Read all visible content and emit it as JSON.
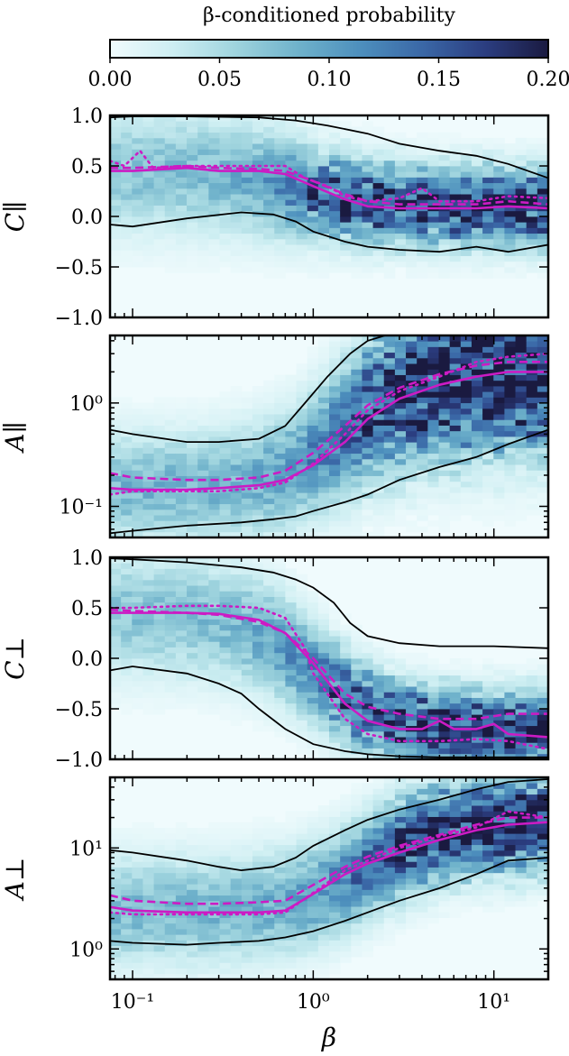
{
  "colorbar": {
    "label": "β-conditioned probability",
    "ticks": [
      "0.00",
      "0.05",
      "0.10",
      "0.15",
      "0.20"
    ],
    "range": [
      0,
      0.2
    ],
    "colormap": [
      "#f0fbfd",
      "#cdeef2",
      "#9fd4de",
      "#6fb2cb",
      "#4d8fbd",
      "#3a67a6",
      "#2b3d80",
      "#1a1a40"
    ]
  },
  "xaxis": {
    "label": "β",
    "scale": "log",
    "range": [
      0.075,
      20
    ],
    "ticks": [
      {
        "value": 0.1,
        "label": "10⁻¹"
      },
      {
        "value": 1,
        "label": "10⁰"
      },
      {
        "value": 10,
        "label": "10¹"
      }
    ]
  },
  "line_styles": {
    "median": "solid",
    "alt1": "dashed",
    "alt2": "dotted",
    "color": "#cc1bc4",
    "contour_color": "#000000"
  },
  "chart_data": [
    {
      "type": "heatmap",
      "ylabel": "C∥",
      "yscale": "linear",
      "ylim": [
        -1,
        1
      ],
      "yticks": [
        {
          "value": 1.0,
          "label": "1.0"
        },
        {
          "value": 0.5,
          "label": "0.5"
        },
        {
          "value": 0.0,
          "label": "0.0"
        },
        {
          "value": -0.5,
          "label": "−0.5"
        },
        {
          "value": -1.0,
          "label": "−1.0"
        }
      ],
      "density": {
        "center_low": 0.45,
        "center_high": 0.1,
        "mid": 0.8,
        "width_low": 0.4,
        "width_high": 0.25,
        "peak": 0.07
      },
      "series": [
        {
          "style": "solid",
          "x": [
            0.075,
            0.1,
            0.2,
            0.3,
            0.5,
            0.7,
            1.0,
            1.5,
            2.0,
            3.0,
            5.0,
            8.0,
            12.0,
            20.0
          ],
          "y": [
            0.45,
            0.45,
            0.48,
            0.45,
            0.45,
            0.42,
            0.3,
            0.17,
            0.1,
            0.08,
            0.08,
            0.08,
            0.1,
            0.08
          ]
        },
        {
          "style": "dashed",
          "x": [
            0.075,
            0.1,
            0.2,
            0.3,
            0.5,
            0.7,
            1.0,
            1.5,
            2.0,
            3.0,
            5.0,
            8.0,
            12.0,
            20.0
          ],
          "y": [
            0.48,
            0.48,
            0.5,
            0.48,
            0.47,
            0.45,
            0.35,
            0.22,
            0.15,
            0.12,
            0.12,
            0.12,
            0.15,
            0.12
          ]
        },
        {
          "style": "dotted",
          "x": [
            0.075,
            0.09,
            0.11,
            0.13,
            0.2,
            0.3,
            0.5,
            0.7,
            0.9,
            1.2,
            1.5,
            2.0,
            3.0,
            4.0,
            5.0,
            8.0,
            12.0,
            20.0
          ],
          "y": [
            0.55,
            0.5,
            0.65,
            0.48,
            0.5,
            0.5,
            0.5,
            0.5,
            0.38,
            0.3,
            0.2,
            0.15,
            0.18,
            0.28,
            0.15,
            0.15,
            0.2,
            0.18
          ]
        }
      ],
      "contours": [
        {
          "x": [
            0.075,
            0.1,
            0.2,
            0.5,
            0.8,
            1.2,
            2.0,
            3.0,
            5.0,
            8.0,
            12.0,
            20.0
          ],
          "y": [
            0.98,
            0.99,
            0.99,
            0.98,
            0.95,
            0.9,
            0.82,
            0.72,
            0.65,
            0.6,
            0.52,
            0.38
          ]
        },
        {
          "x": [
            0.075,
            0.1,
            0.2,
            0.4,
            0.6,
            0.8,
            1.0,
            1.5,
            2.0,
            3.0,
            5.0,
            8.0,
            12.0,
            20.0
          ],
          "y": [
            -0.08,
            -0.1,
            -0.02,
            0.04,
            0.02,
            -0.05,
            -0.15,
            -0.25,
            -0.3,
            -0.33,
            -0.35,
            -0.3,
            -0.35,
            -0.28
          ]
        }
      ]
    },
    {
      "type": "heatmap",
      "ylabel": "A∥",
      "yscale": "log",
      "ylim": [
        0.05,
        4.5
      ],
      "yticks": [
        {
          "value": 1.0,
          "label": "10⁰"
        },
        {
          "value": 0.1,
          "label": "10⁻¹"
        }
      ],
      "density": {
        "center_low": 0.15,
        "center_high": 2.0,
        "mid": 1.5,
        "width_low": 0.35,
        "width_high": 0.5,
        "peak": 0.08
      },
      "series": [
        {
          "style": "solid",
          "x": [
            0.075,
            0.1,
            0.2,
            0.3,
            0.5,
            0.7,
            1.0,
            1.5,
            2.0,
            3.0,
            5.0,
            8.0,
            12.0,
            20.0
          ],
          "y": [
            0.15,
            0.145,
            0.145,
            0.15,
            0.16,
            0.18,
            0.25,
            0.42,
            0.7,
            1.1,
            1.5,
            1.8,
            2.0,
            2.0
          ]
        },
        {
          "style": "dashed",
          "x": [
            0.075,
            0.1,
            0.2,
            0.3,
            0.5,
            0.7,
            1.0,
            1.5,
            2.0,
            3.0,
            5.0,
            8.0,
            12.0,
            20.0
          ],
          "y": [
            0.21,
            0.19,
            0.18,
            0.18,
            0.19,
            0.22,
            0.33,
            0.6,
            0.95,
            1.4,
            1.9,
            2.3,
            2.5,
            2.5
          ]
        },
        {
          "style": "dotted",
          "x": [
            0.075,
            0.1,
            0.2,
            0.3,
            0.5,
            0.7,
            1.0,
            1.5,
            2.0,
            3.0,
            5.0,
            8.0,
            12.0,
            20.0
          ],
          "y": [
            0.13,
            0.14,
            0.14,
            0.14,
            0.15,
            0.17,
            0.26,
            0.5,
            0.85,
            1.3,
            1.8,
            2.5,
            2.8,
            3.0
          ]
        }
      ],
      "contours": [
        {
          "x": [
            0.075,
            0.1,
            0.2,
            0.3,
            0.5,
            0.7,
            0.9,
            1.2,
            1.6,
            2.0,
            2.5,
            3.0,
            5.0,
            10.0,
            20.0
          ],
          "y": [
            0.55,
            0.5,
            0.42,
            0.42,
            0.45,
            0.6,
            1.0,
            1.8,
            3.0,
            4.0,
            4.5,
            4.6,
            4.6,
            4.6,
            4.6
          ]
        },
        {
          "x": [
            0.075,
            0.1,
            0.2,
            0.4,
            0.6,
            0.8,
            1.0,
            1.5,
            2.0,
            3.0,
            5.0,
            8.0,
            12.0,
            20.0
          ],
          "y": [
            0.055,
            0.058,
            0.065,
            0.07,
            0.075,
            0.08,
            0.09,
            0.11,
            0.13,
            0.18,
            0.24,
            0.3,
            0.4,
            0.55
          ]
        }
      ]
    },
    {
      "type": "heatmap",
      "ylabel": "C⊥",
      "yscale": "linear",
      "ylim": [
        -1,
        1
      ],
      "yticks": [
        {
          "value": 1.0,
          "label": "1.0"
        },
        {
          "value": 0.5,
          "label": "0.5"
        },
        {
          "value": 0.0,
          "label": "0.0"
        },
        {
          "value": -0.5,
          "label": "−0.5"
        },
        {
          "value": -1.0,
          "label": "−1.0"
        }
      ],
      "density": {
        "center_low": 0.45,
        "center_high": -0.72,
        "mid": 1.0,
        "width_low": 0.4,
        "width_high": 0.25,
        "peak": 0.07
      },
      "series": [
        {
          "style": "solid",
          "x": [
            0.075,
            0.1,
            0.2,
            0.3,
            0.5,
            0.7,
            1.0,
            1.5,
            2.0,
            3.0,
            4.0,
            5.0,
            6.0,
            8.0,
            10.0,
            12.0,
            20.0
          ],
          "y": [
            0.45,
            0.45,
            0.45,
            0.44,
            0.38,
            0.25,
            -0.05,
            -0.45,
            -0.62,
            -0.7,
            -0.7,
            -0.62,
            -0.7,
            -0.7,
            -0.65,
            -0.75,
            -0.78
          ]
        },
        {
          "style": "dashed",
          "x": [
            0.075,
            0.1,
            0.2,
            0.3,
            0.5,
            0.7,
            1.0,
            1.5,
            2.0,
            3.0,
            5.0,
            8.0,
            12.0,
            20.0
          ],
          "y": [
            0.48,
            0.47,
            0.45,
            0.43,
            0.36,
            0.25,
            0.0,
            -0.35,
            -0.48,
            -0.55,
            -0.6,
            -0.6,
            -0.55,
            -0.55
          ]
        },
        {
          "style": "dotted",
          "x": [
            0.075,
            0.1,
            0.2,
            0.3,
            0.5,
            0.7,
            0.9,
            1.0,
            1.5,
            2.0,
            3.0,
            5.0,
            8.0,
            12.0,
            20.0
          ],
          "y": [
            0.5,
            0.5,
            0.52,
            0.52,
            0.5,
            0.4,
            0.1,
            -0.15,
            -0.6,
            -0.75,
            -0.82,
            -0.82,
            -0.8,
            -0.82,
            -0.9
          ]
        }
      ],
      "contours": [
        {
          "x": [
            0.075,
            0.1,
            0.2,
            0.4,
            0.6,
            0.8,
            1.0,
            1.3,
            1.6,
            2.0,
            3.0,
            5.0,
            10.0,
            20.0
          ],
          "y": [
            0.99,
            0.98,
            0.95,
            0.9,
            0.85,
            0.78,
            0.7,
            0.55,
            0.35,
            0.22,
            0.15,
            0.12,
            0.12,
            0.1
          ]
        },
        {
          "x": [
            0.075,
            0.1,
            0.2,
            0.3,
            0.4,
            0.5,
            0.7,
            1.0,
            1.5,
            2.0,
            3.0,
            5.0,
            10.0,
            20.0
          ],
          "y": [
            -0.12,
            -0.08,
            -0.15,
            -0.25,
            -0.35,
            -0.5,
            -0.7,
            -0.85,
            -0.92,
            -0.95,
            -0.97,
            -0.98,
            -0.98,
            -0.98
          ]
        }
      ]
    },
    {
      "type": "heatmap",
      "ylabel": "A⊥",
      "yscale": "log",
      "ylim": [
        0.5,
        50
      ],
      "yticks": [
        {
          "value": 10,
          "label": "10¹"
        },
        {
          "value": 1,
          "label": "10⁰"
        }
      ],
      "density": {
        "center_low": 2.4,
        "center_high": 18,
        "mid": 2.0,
        "width_low": 0.35,
        "width_high": 0.3,
        "peak": 0.08
      },
      "series": [
        {
          "style": "solid",
          "x": [
            0.075,
            0.1,
            0.2,
            0.3,
            0.5,
            0.7,
            1.0,
            1.5,
            2.0,
            3.0,
            5.0,
            8.0,
            12.0,
            20.0
          ],
          "y": [
            2.6,
            2.4,
            2.3,
            2.3,
            2.3,
            2.4,
            3.5,
            5.5,
            7.0,
            9.0,
            12.0,
            15.0,
            17.0,
            18.0
          ]
        },
        {
          "style": "dashed",
          "x": [
            0.075,
            0.1,
            0.2,
            0.3,
            0.5,
            0.7,
            1.0,
            1.5,
            2.0,
            3.0,
            5.0,
            8.0,
            12.0,
            20.0
          ],
          "y": [
            3.4,
            3.0,
            2.8,
            2.8,
            2.9,
            3.0,
            4.3,
            6.5,
            8.2,
            10.5,
            13.5,
            17.0,
            20.0,
            20.0
          ]
        },
        {
          "style": "dotted",
          "x": [
            0.075,
            0.1,
            0.2,
            0.3,
            0.5,
            0.7,
            1.0,
            1.5,
            2.0,
            3.0,
            5.0,
            8.0,
            12.0,
            20.0
          ],
          "y": [
            2.3,
            2.2,
            2.2,
            2.2,
            2.2,
            2.3,
            3.6,
            6.0,
            7.5,
            10.0,
            13.0,
            16.0,
            23.0,
            20.0
          ]
        }
      ],
      "contours": [
        {
          "x": [
            0.075,
            0.1,
            0.2,
            0.3,
            0.4,
            0.6,
            0.8,
            1.0,
            1.5,
            2.0,
            3.0,
            5.0,
            8.0,
            12.0,
            20.0
          ],
          "y": [
            9.5,
            9.0,
            7.5,
            6.5,
            6.0,
            6.5,
            8.0,
            10.5,
            15.0,
            19.0,
            24.0,
            30.0,
            38.0,
            45.0,
            48.0
          ]
        },
        {
          "x": [
            0.075,
            0.1,
            0.2,
            0.3,
            0.5,
            0.7,
            1.0,
            1.5,
            2.0,
            3.0,
            5.0,
            8.0,
            12.0,
            20.0
          ],
          "y": [
            1.2,
            1.15,
            1.1,
            1.15,
            1.2,
            1.3,
            1.5,
            1.9,
            2.3,
            3.0,
            4.0,
            5.5,
            7.5,
            8.0
          ]
        }
      ]
    }
  ]
}
